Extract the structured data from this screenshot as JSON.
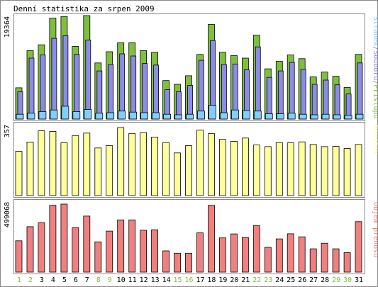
{
  "chart_data": {
    "type": "bar",
    "title": "Denní statistika za srpen 2009",
    "categories": [
      "1",
      "2",
      "3",
      "4",
      "5",
      "6",
      "7",
      "8",
      "9",
      "10",
      "11",
      "12",
      "13",
      "14",
      "15",
      "16",
      "17",
      "18",
      "19",
      "20",
      "21",
      "22",
      "23",
      "24",
      "25",
      "26",
      "27",
      "28",
      "29",
      "30",
      "31"
    ],
    "weekend_days": [
      "1",
      "2",
      "8",
      "9",
      "15",
      "16",
      "22",
      "23",
      "29",
      "30"
    ],
    "colors": {
      "pristupu": "#7fbf3f",
      "souboru": "#8b8bea",
      "stranek": "#7fcfff",
      "navstev": "#ffff99",
      "prenosu": "#f08080",
      "weekday_tick": "#000000",
      "weekend_tick": "#7fbf3f",
      "frame": "#888888"
    },
    "panels": [
      {
        "id": "traffic",
        "ymax_label": "19364",
        "ylim": [
          0,
          19364
        ],
        "legend": [
          {
            "text": "Stránek",
            "color_key": "stranek"
          },
          {
            "text": "/",
            "color_key": "frame"
          },
          {
            "text": "Souborů",
            "color_key": "souboru"
          },
          {
            "text": "/",
            "color_key": "frame"
          },
          {
            "text": "Přístupů",
            "color_key": "pristupu"
          }
        ],
        "series": [
          {
            "name": "Přístupů",
            "color_key": "pristupu",
            "values": [
              5850,
              12800,
              13900,
              18900,
              19200,
              13600,
              19364,
              10500,
              12600,
              14300,
              14300,
              12800,
              12500,
              7200,
              6500,
              8100,
              12100,
              17700,
              12500,
              11900,
              11400,
              15700,
              9400,
              10800,
              12000,
              11300,
              7900,
              8800,
              8000,
              5900,
              12100
            ]
          },
          {
            "name": "Souborů",
            "color_key": "souboru",
            "values": [
              5100,
              11400,
              12000,
              15100,
              15600,
              12100,
              14800,
              9000,
              10200,
              12200,
              11800,
              10400,
              10100,
              5500,
              5100,
              6300,
              11000,
              14700,
              10200,
              10300,
              9200,
              13500,
              7800,
              9000,
              10600,
              9300,
              6500,
              7300,
              6400,
              4700,
              10500
            ]
          },
          {
            "name": "Stránek",
            "color_key": "stranek",
            "values": [
              900,
              1100,
              1400,
              1700,
              2400,
              1400,
              1800,
              1100,
              1200,
              1500,
              1300,
              1200,
              1200,
              900,
              800,
              900,
              1500,
              2600,
              1200,
              1700,
              1600,
              1500,
              1000,
              1000,
              1100,
              900,
              800,
              900,
              800,
              700,
              900
            ]
          }
        ]
      },
      {
        "id": "visits",
        "ymax_label": "357",
        "ylim": [
          0,
          357
        ],
        "legend": [
          {
            "text": "Návštěv",
            "color_key": "navstev"
          }
        ],
        "series": [
          {
            "name": "Návštěv",
            "color_key": "navstev",
            "values": [
              232,
              281,
              340,
              337,
              277,
              315,
              328,
              250,
              262,
              357,
              326,
              331,
              307,
              278,
              224,
              262,
              344,
              325,
              295,
              285,
              302,
              266,
              257,
              278,
              277,
              282,
              268,
              257,
              258,
              247,
              268
            ]
          }
        ]
      },
      {
        "id": "transfer",
        "ymax_label": "499068",
        "ylim": [
          0,
          499068
        ],
        "legend": [
          {
            "text": "Objem přenosu",
            "color_key": "prenosu"
          }
        ],
        "series": [
          {
            "name": "Objem přenosu",
            "color_key": "prenosu",
            "values": [
              230000,
              333000,
              363000,
              490000,
              499068,
              327000,
              411000,
              222000,
              301000,
              383000,
              383000,
              307000,
              311000,
              156000,
              139000,
              139000,
              288000,
              490000,
              251000,
              280000,
              254000,
              342000,
              182000,
              244000,
              281000,
              259000,
              171000,
              212000,
              171000,
              143000,
              370000
            ]
          }
        ]
      }
    ]
  }
}
